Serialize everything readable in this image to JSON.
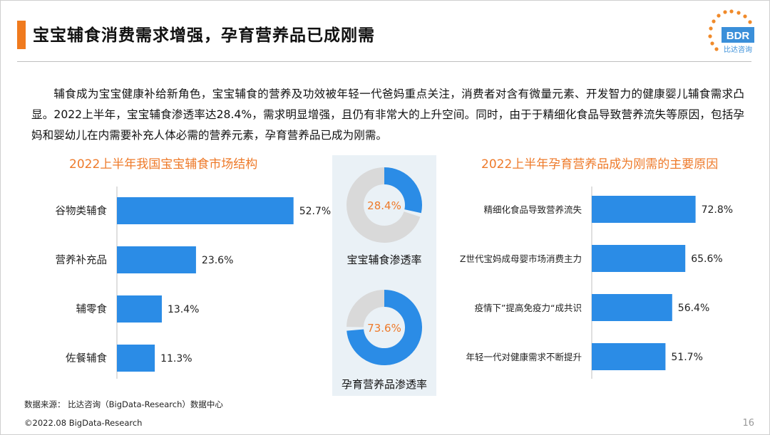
{
  "header": {
    "title": "宝宝辅食消费需求增强，孕育营养品已成刚需",
    "logo_text": "BDR",
    "logo_subtext": "比达咨询"
  },
  "intro": "辅食成为宝宝健康补给新角色，宝宝辅食的营养及功效被年轻一代爸妈重点关注，消费者对含有微量元素、开发智力的健康婴儿辅食需求凸显。2022上半年，宝宝辅食渗透率达28.4%，需求明显增强，且仍有非常大的上升空间。同时，由于于精细化食品导致营养流失等原因，包括孕妈和婴幼儿在内需要补充人体必需的营养元素，孕育营养品已成为刚需。",
  "colors": {
    "bar": "#2b8ce6",
    "accent": "#ee7a2a",
    "donut_track": "#d9d9d9",
    "donut_card": "#eaf1f6"
  },
  "chart_data": [
    {
      "type": "bar",
      "orientation": "horizontal",
      "title": "2022上半年我国宝宝辅食市场结构",
      "categories": [
        "谷物类辅食",
        "营养补充品",
        "辅零食",
        "佐餐辅食"
      ],
      "values": [
        52.7,
        23.6,
        13.4,
        11.3
      ],
      "value_labels": [
        "52.7%",
        "23.6%",
        "13.4%",
        "11.3%"
      ],
      "unit": "%"
    },
    {
      "type": "pie",
      "subtype": "donut",
      "label": "宝宝辅食渗透率",
      "value": 28.4,
      "value_label": "28.4%"
    },
    {
      "type": "pie",
      "subtype": "donut",
      "label": "孕育营养品渗透率",
      "value": 73.6,
      "value_label": "73.6%"
    },
    {
      "type": "bar",
      "orientation": "horizontal",
      "title": "2022上半年孕育营养品成为刚需的主要原因",
      "categories": [
        "精细化食品导致营养流失",
        "Z世代宝妈成母婴市场消费主力",
        "疫情下”提高免疫力“成共识",
        "年轻一代对健康需求不断提升"
      ],
      "values": [
        72.8,
        65.6,
        56.4,
        51.7
      ],
      "value_labels": [
        "72.8%",
        "65.6%",
        "56.4%",
        "51.7%"
      ],
      "unit": "%"
    }
  ],
  "footer": {
    "source": "数据来源： 比达咨询（BigData-Research）数据中心",
    "copyright": "©2022.08 BigData-Research",
    "page": "16"
  }
}
